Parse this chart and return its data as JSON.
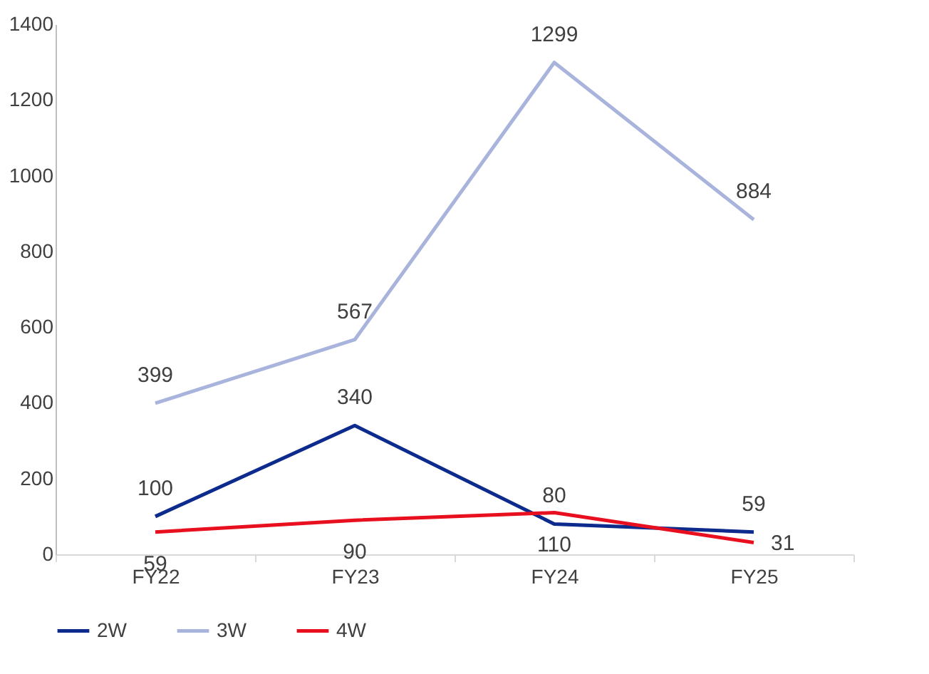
{
  "chart_data": {
    "type": "line",
    "categories": [
      "FY22",
      "FY23",
      "FY24",
      "FY25"
    ],
    "series": [
      {
        "name": "2W",
        "color": "#0d2b8c",
        "values": [
          100,
          340,
          80,
          59
        ]
      },
      {
        "name": "3W",
        "color": "#a9b4dc",
        "values": [
          399,
          567,
          1299,
          884
        ]
      },
      {
        "name": "4W",
        "color": "#e8101f",
        "values": [
          59,
          90,
          110,
          31
        ]
      }
    ],
    "ylim": [
      0,
      1400
    ],
    "yticks": [
      0,
      200,
      400,
      600,
      800,
      1000,
      1200,
      1400
    ],
    "grid": false,
    "legend": "bottom",
    "data_labels": true,
    "marker": "none",
    "line_style": "solid"
  }
}
